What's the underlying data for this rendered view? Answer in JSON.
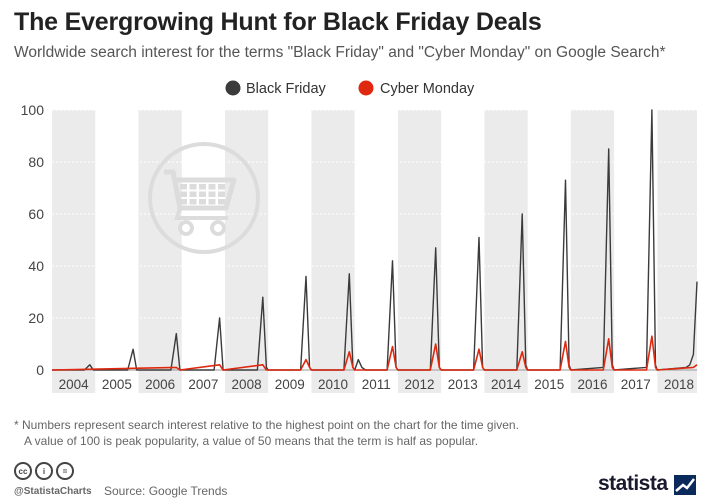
{
  "header": {
    "title": "The Evergrowing Hunt for Black Friday Deals",
    "subtitle": "Worldwide search interest for the terms \"Black Friday\" and \"Cyber Monday\" on Google Search*"
  },
  "footnote": {
    "line1": "* Numbers represent search interest relative to the highest point on the chart for the time given.",
    "line2": "A value of 100 is peak popularity, a value of 50 means that the term is half as popular."
  },
  "footer": {
    "handle": "@StatistaCharts",
    "source": "Source: Google Trends",
    "brand": "statista",
    "license_icons": [
      "cc",
      "i",
      "="
    ]
  },
  "colors": {
    "black_friday": "#3b3b3b",
    "cyber_monday": "#e0280f",
    "band": "#ebebeb",
    "icon": "#dcdcdc"
  },
  "icons": {
    "watermark": "shopping-cart-icon"
  },
  "chart_data": {
    "type": "line",
    "title": "The Evergrowing Hunt for Black Friday Deals",
    "ylim": [
      0,
      100
    ],
    "yticks": [
      0,
      20,
      40,
      60,
      80,
      100
    ],
    "xlim": [
      2004.0,
      2018.917
    ],
    "xtick_labels": [
      "2004",
      "2005",
      "2006",
      "2007",
      "2008",
      "2009",
      "2010",
      "2011",
      "2012",
      "2013",
      "2014",
      "2015",
      "2016",
      "2017",
      "2018"
    ],
    "grid": true,
    "legend_position": "top",
    "series": [
      {
        "name": "Black Friday",
        "color": "#3b3b3b",
        "points": [
          [
            2004.0,
            0
          ],
          [
            2004.75,
            0
          ],
          [
            2004.875,
            2
          ],
          [
            2004.958,
            0
          ],
          [
            2005.75,
            0
          ],
          [
            2005.875,
            8
          ],
          [
            2005.958,
            0
          ],
          [
            2006.75,
            0
          ],
          [
            2006.875,
            14
          ],
          [
            2006.958,
            0
          ],
          [
            2007.75,
            0
          ],
          [
            2007.875,
            20
          ],
          [
            2007.958,
            0
          ],
          [
            2008.75,
            0
          ],
          [
            2008.875,
            28
          ],
          [
            2008.958,
            1
          ],
          [
            2009.0,
            0
          ],
          [
            2009.75,
            0
          ],
          [
            2009.875,
            36
          ],
          [
            2009.958,
            1
          ],
          [
            2010.0,
            0
          ],
          [
            2010.75,
            0
          ],
          [
            2010.875,
            37
          ],
          [
            2010.958,
            1
          ],
          [
            2011.0,
            0
          ],
          [
            2011.083,
            4
          ],
          [
            2011.167,
            1
          ],
          [
            2011.25,
            0
          ],
          [
            2011.75,
            0
          ],
          [
            2011.875,
            42
          ],
          [
            2011.958,
            1
          ],
          [
            2012.0,
            0
          ],
          [
            2012.75,
            0
          ],
          [
            2012.875,
            47
          ],
          [
            2012.958,
            1
          ],
          [
            2013.0,
            0
          ],
          [
            2013.75,
            0
          ],
          [
            2013.875,
            51
          ],
          [
            2013.958,
            1
          ],
          [
            2014.0,
            0
          ],
          [
            2014.75,
            0
          ],
          [
            2014.875,
            60
          ],
          [
            2014.958,
            2
          ],
          [
            2015.0,
            0
          ],
          [
            2015.75,
            0
          ],
          [
            2015.875,
            73
          ],
          [
            2015.958,
            2
          ],
          [
            2016.0,
            0
          ],
          [
            2016.75,
            1
          ],
          [
            2016.875,
            85
          ],
          [
            2016.958,
            2
          ],
          [
            2017.0,
            0
          ],
          [
            2017.75,
            1
          ],
          [
            2017.875,
            100
          ],
          [
            2017.958,
            2
          ],
          [
            2018.0,
            0
          ],
          [
            2018.667,
            1
          ],
          [
            2018.75,
            2
          ],
          [
            2018.833,
            6
          ],
          [
            2018.917,
            34
          ]
        ]
      },
      {
        "name": "Cyber Monday",
        "color": "#e0280f",
        "points": [
          [
            2004.0,
            0
          ],
          [
            2006.875,
            1
          ],
          [
            2006.958,
            0
          ],
          [
            2007.875,
            2
          ],
          [
            2007.958,
            0
          ],
          [
            2008.875,
            2
          ],
          [
            2008.958,
            0
          ],
          [
            2009.75,
            0
          ],
          [
            2009.875,
            4
          ],
          [
            2009.958,
            1
          ],
          [
            2010.0,
            0
          ],
          [
            2010.75,
            0
          ],
          [
            2010.875,
            7
          ],
          [
            2010.958,
            1
          ],
          [
            2011.0,
            0
          ],
          [
            2011.75,
            0
          ],
          [
            2011.875,
            9
          ],
          [
            2011.958,
            1
          ],
          [
            2012.0,
            0
          ],
          [
            2012.75,
            0
          ],
          [
            2012.875,
            10
          ],
          [
            2012.958,
            1
          ],
          [
            2013.0,
            0
          ],
          [
            2013.75,
            0
          ],
          [
            2013.875,
            8
          ],
          [
            2013.958,
            1
          ],
          [
            2014.0,
            0
          ],
          [
            2014.75,
            0
          ],
          [
            2014.875,
            7
          ],
          [
            2014.958,
            1
          ],
          [
            2015.0,
            0
          ],
          [
            2015.75,
            0
          ],
          [
            2015.875,
            11
          ],
          [
            2015.958,
            1
          ],
          [
            2016.0,
            0
          ],
          [
            2016.75,
            0
          ],
          [
            2016.875,
            12
          ],
          [
            2016.958,
            1
          ],
          [
            2017.0,
            0
          ],
          [
            2017.75,
            0
          ],
          [
            2017.875,
            13
          ],
          [
            2017.958,
            1
          ],
          [
            2018.0,
            0
          ],
          [
            2018.833,
            1
          ],
          [
            2018.917,
            2
          ]
        ]
      }
    ]
  }
}
